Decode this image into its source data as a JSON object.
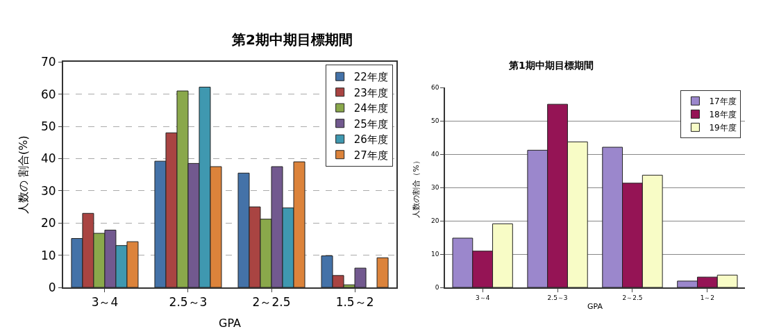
{
  "chart_data": [
    {
      "type": "bar",
      "title": "第2期中期目標期間",
      "xlabel": "GPA",
      "ylabel": "人数の 割合(%)",
      "categories": [
        "3～4",
        "2.5～3",
        "2～2.5",
        "1.5～2"
      ],
      "ylim": [
        0,
        70
      ],
      "yticks": [
        0,
        10,
        20,
        30,
        40,
        50,
        60,
        70
      ],
      "grid": "y",
      "line_style": "dashed",
      "legend": "top right",
      "series": [
        {
          "name": "22年度",
          "color": "#4472a8",
          "values": [
            15.2,
            39.2,
            35.5,
            9.8
          ]
        },
        {
          "name": "23年度",
          "color": "#a94442",
          "values": [
            23,
            48,
            25,
            3.7
          ]
        },
        {
          "name": "24年度",
          "color": "#8aa84b",
          "values": [
            16.8,
            61,
            21.2,
            0.8
          ]
        },
        {
          "name": "25年度",
          "color": "#72598f",
          "values": [
            17.8,
            38.5,
            37.5,
            6
          ]
        },
        {
          "name": "26年度",
          "color": "#3f98b0",
          "values": [
            13,
            62.2,
            24.7,
            null
          ]
        },
        {
          "name": "27年度",
          "color": "#dc833b",
          "values": [
            14.2,
            37.5,
            39,
            9.2
          ]
        }
      ]
    },
    {
      "type": "bar",
      "title": "第1期中期目標期間",
      "xlabel": "GPA",
      "ylabel": "人数の割合（%）",
      "categories": [
        "3～4",
        "2.5～3",
        "2～2.5",
        "1～2"
      ],
      "ylim": [
        0,
        60
      ],
      "yticks": [
        0,
        10,
        20,
        30,
        40,
        50,
        60
      ],
      "grid": "y",
      "line_style": "solid",
      "legend": "top right",
      "series": [
        {
          "name": "17年度",
          "color": "#9b87cc",
          "values": [
            14.8,
            41.2,
            42.1,
            1.9
          ]
        },
        {
          "name": "18年度",
          "color": "#951455",
          "values": [
            10.9,
            55,
            31.3,
            3.1
          ]
        },
        {
          "name": "19年度",
          "color": "#f8fcc6",
          "values": [
            19.1,
            43.7,
            33.7,
            3.7
          ]
        }
      ]
    }
  ]
}
